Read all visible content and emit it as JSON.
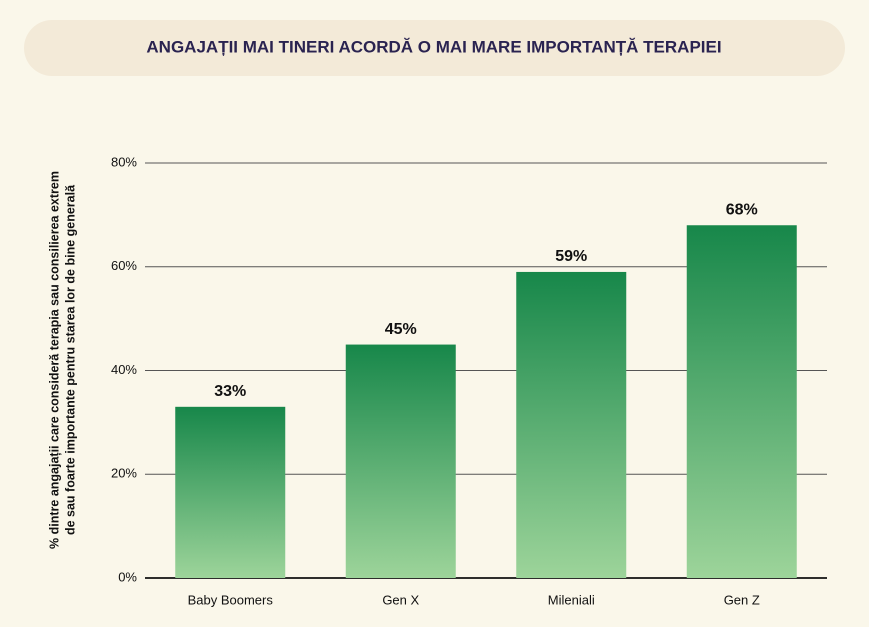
{
  "chart_data": {
    "type": "bar",
    "title": "ANGAJAȚII MAI TINERI ACORDĂ O MAI MARE IMPORTANȚĂ TERAPIEI",
    "y_label": [
      "% dintre angajații care consideră terapia sau consilierea extrem",
      "de sau foarte importante pentru starea lor de bine generală"
    ],
    "categories": [
      "Baby Boomers",
      "Gen X",
      "Mileniali",
      "Gen Z"
    ],
    "values": [
      33,
      45,
      59,
      68
    ],
    "value_labels": [
      "33%",
      "45%",
      "59%",
      "68%"
    ],
    "color": [
      "#17874a",
      "#9dd49a"
    ],
    "ylim": [
      0,
      80
    ],
    "yticks": [
      {
        "value": 0,
        "label": "0%"
      },
      {
        "value": 20,
        "label": "20%"
      },
      {
        "value": 40,
        "label": "40%"
      },
      {
        "value": 60,
        "label": "60%"
      },
      {
        "value": 80,
        "label": "80%"
      }
    ],
    "grid": true
  }
}
